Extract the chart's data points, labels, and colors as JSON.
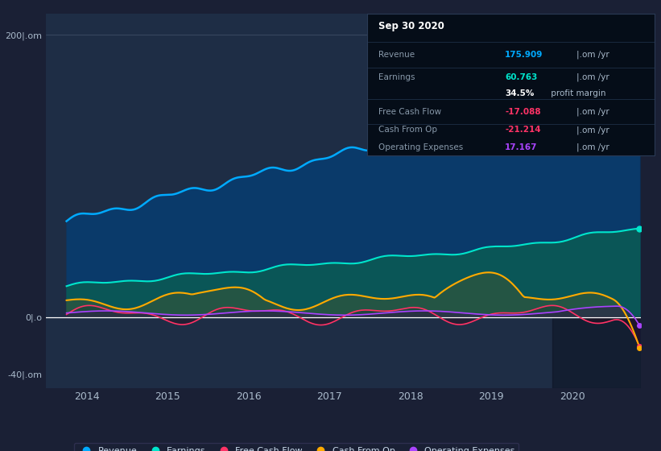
{
  "bg_color": "#1a2035",
  "plot_bg_color": "#1e2d45",
  "title": "Sep 30 2020",
  "ylim": [
    -50,
    215
  ],
  "xlim_start": 2013.5,
  "xlim_end": 2020.85,
  "xticks": [
    2014,
    2015,
    2016,
    2017,
    2018,
    2019,
    2020
  ],
  "ytick_vals": [
    200,
    0,
    -40
  ],
  "ytick_labels": [
    "200|.om",
    "0|.o",
    "-40|.om"
  ],
  "revenue_color": "#00aaff",
  "earnings_color": "#00e5cc",
  "fcf_color": "#ff3366",
  "cashfromop_color": "#ffaa00",
  "opex_color": "#aa44ff",
  "revenue_fill": "#0a3a6a",
  "earnings_fill": "#0a5a55",
  "highlight_color": "#0d1525",
  "zero_line_color": "#ffffff",
  "grid_line_color": "#aabbcc",
  "tick_label_color": "#aabbcc",
  "legend_items": [
    "Revenue",
    "Earnings",
    "Free Cash Flow",
    "Cash From Op",
    "Operating Expenses"
  ],
  "info_box": {
    "date": "Sep 30 2020",
    "revenue_val": "175.909",
    "revenue_unit": "|.om /yr",
    "earnings_val": "60.763",
    "earnings_unit": "|.om /yr",
    "margin": "34.5% profit margin",
    "fcf_val": "-17.088",
    "fcf_unit": "|.om /yr",
    "cashfromop_val": "-21.214",
    "cashfromop_unit": "|.om /yr",
    "opex_val": "17.167",
    "opex_unit": "|.om /yr"
  }
}
